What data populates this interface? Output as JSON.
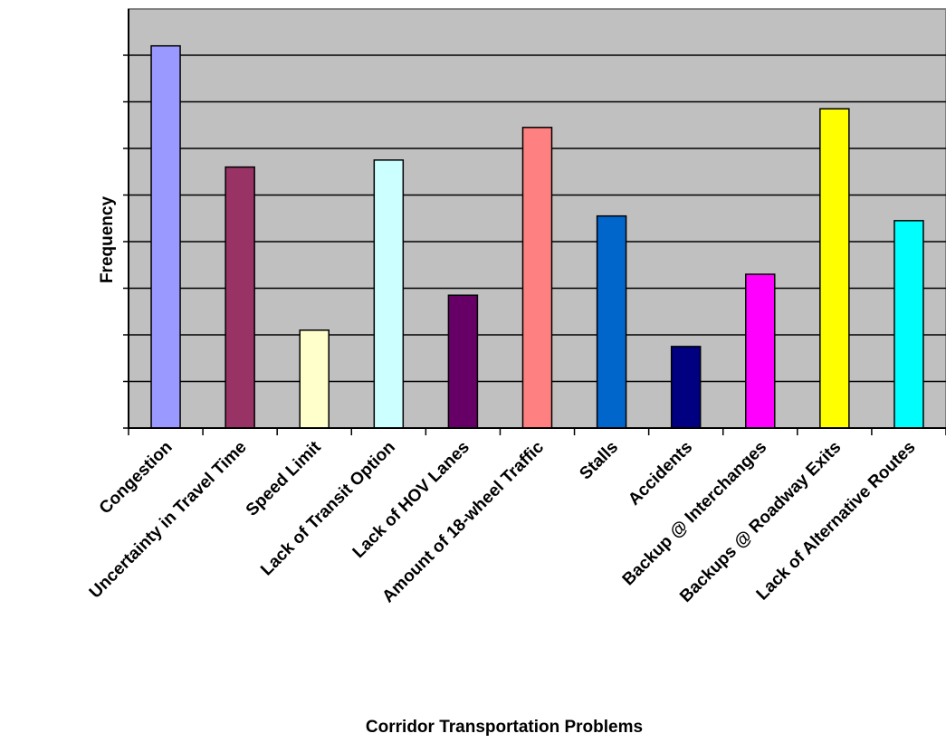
{
  "chart_data": {
    "type": "bar",
    "title": "",
    "xlabel": "Corridor Transportation Problems",
    "ylabel": "Frequency",
    "categories": [
      "Congestion",
      "Uncertainty in Travel Time",
      "Speed Limit",
      "Lack of Transit Option",
      "Lack of HOV Lanes",
      "Amount of 18-wheel Traffic",
      "Stalls",
      "Accidents",
      "Backup @ Interchanges",
      "Backups @ Roadway Exits",
      "Lack of Alternative Routes"
    ],
    "values": [
      8.2,
      5.6,
      2.1,
      5.75,
      2.85,
      6.45,
      4.55,
      1.75,
      3.3,
      6.85,
      4.45
    ],
    "colors": [
      "#9999ff",
      "#993366",
      "#ffffcc",
      "#ccffff",
      "#660066",
      "#ff8080",
      "#0066cc",
      "#000080",
      "#ff00ff",
      "#ffff00",
      "#00ffff"
    ],
    "ylim": [
      0,
      8.5
    ],
    "y_gridlines": 8,
    "y_tick_labels_shown": false,
    "grid": true,
    "plot_background": "#c0c0c0",
    "legend": "none"
  }
}
